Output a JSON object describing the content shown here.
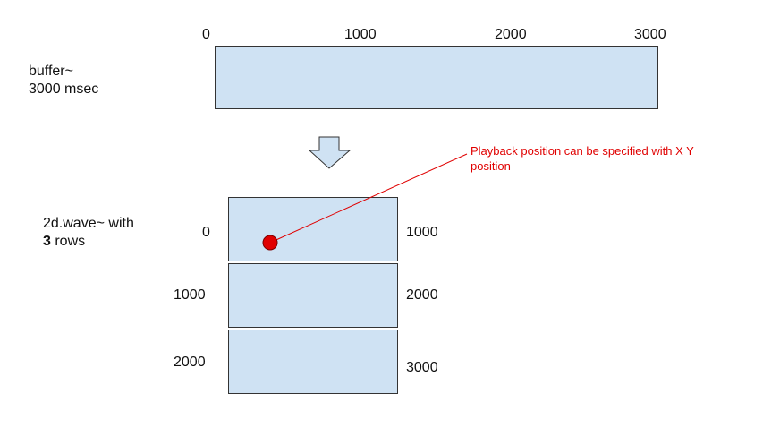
{
  "buffer": {
    "title_line1": "buffer~",
    "title_line2": "3000 msec",
    "ticks": [
      "0",
      "1000",
      "2000",
      "3000"
    ]
  },
  "wave": {
    "title_prefix": "2d.wave~  with",
    "rows_count": "3",
    "rows_suffix": " rows",
    "rows": [
      {
        "start": "0",
        "end": "1000"
      },
      {
        "start": "1000",
        "end": "2000"
      },
      {
        "start": "2000",
        "end": "3000"
      }
    ]
  },
  "annotation": {
    "text": "Playback position can be specified with X Y position",
    "color": "#e00000"
  },
  "colors": {
    "box_fill": "#cfe2f3",
    "arrow_fill": "#cfe2f3",
    "marker_fill": "#e00000"
  },
  "icons": {
    "arrow": "down-arrow-icon",
    "marker": "playback-marker-icon"
  }
}
